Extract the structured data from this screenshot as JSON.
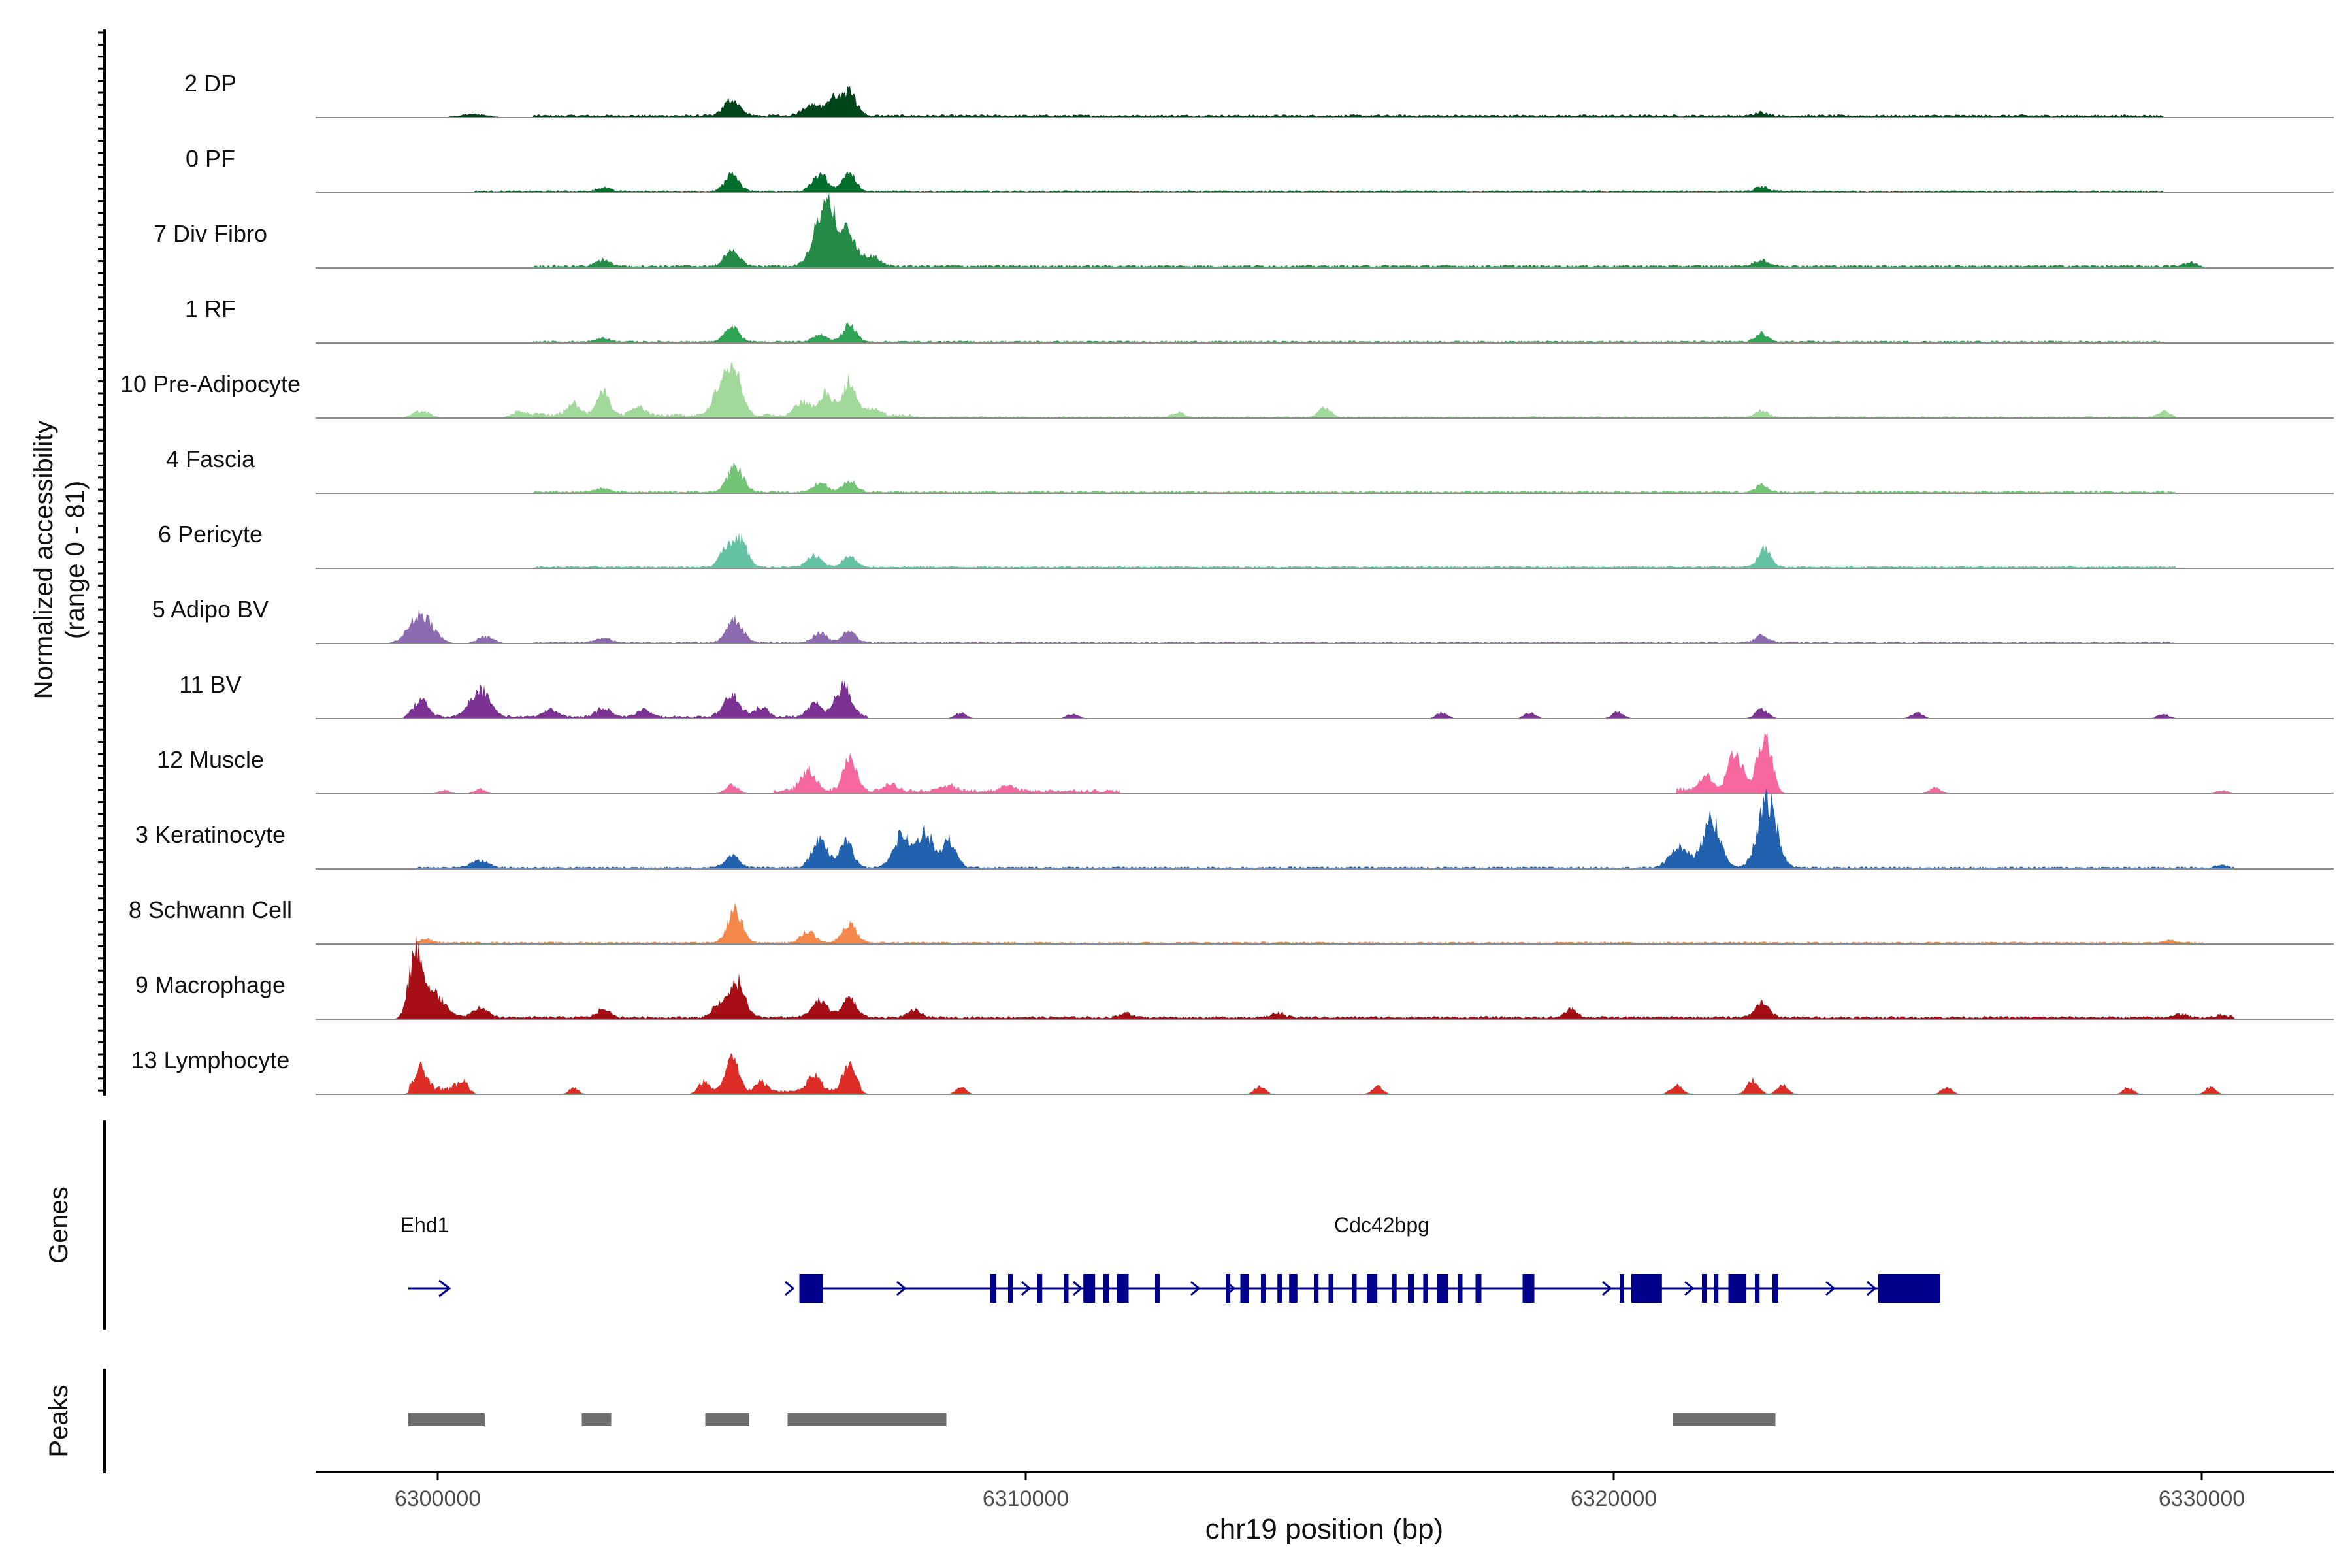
{
  "chart_data": {
    "type": "area",
    "title": "",
    "ylabel_lines": [
      "Normalized accessibility",
      "(range 0 - 81)"
    ],
    "xlabel": "chr19 position (bp)",
    "xlim": [
      6297800,
      6332200
    ],
    "ylim": [
      0,
      81
    ],
    "x_ticks": [
      6300000,
      6310000,
      6320000,
      6330000
    ],
    "x_tick_labels": [
      "6300000",
      "6310000",
      "6320000",
      "6330000"
    ],
    "track_labels": {
      "genes": "Genes",
      "peaks": "Peaks"
    },
    "baseline_color": "#8c8c8c",
    "grid": false,
    "legend": "none",
    "series": [
      {
        "name": "2 DP",
        "color": "#00441b",
        "floor": [
          [
            6301500,
            6329300,
            2
          ]
        ],
        "peaks": [
          [
            6300500,
            250,
            3
          ],
          [
            6304900,
            130,
            14
          ],
          [
            6306250,
            140,
            10
          ],
          [
            6306620,
            120,
            14
          ],
          [
            6306900,
            120,
            20
          ],
          [
            6322450,
            100,
            3
          ]
        ]
      },
      {
        "name": "0 PF",
        "color": "#006d2c",
        "floor": [
          [
            6300500,
            6329300,
            1.5
          ]
        ],
        "peaks": [
          [
            6302700,
            120,
            3
          ],
          [
            6304900,
            120,
            14
          ],
          [
            6306400,
            130,
            14
          ],
          [
            6306900,
            110,
            16
          ],
          [
            6322450,
            100,
            4
          ]
        ]
      },
      {
        "name": "7 Div Fibro",
        "color": "#238b45",
        "floor": [
          [
            6301500,
            6329800,
            2
          ]
        ],
        "peaks": [
          [
            6302700,
            120,
            5
          ],
          [
            6304900,
            120,
            14
          ],
          [
            6306500,
            180,
            52
          ],
          [
            6306900,
            140,
            24
          ],
          [
            6307300,
            120,
            8
          ],
          [
            6322450,
            120,
            5
          ],
          [
            6329800,
            110,
            4
          ]
        ]
      },
      {
        "name": "1 RF",
        "color": "#31a354",
        "floor": [
          [
            6301500,
            6329300,
            1.5
          ]
        ],
        "peaks": [
          [
            6302700,
            120,
            3
          ],
          [
            6304900,
            120,
            12
          ],
          [
            6306400,
            120,
            6
          ],
          [
            6306900,
            110,
            15
          ],
          [
            6322450,
            100,
            7
          ]
        ]
      },
      {
        "name": "10 Pre-Adipocyte",
        "color": "#a1d99b",
        "floor": [
          [
            6301500,
            6308000,
            3
          ],
          [
            6308000,
            6329500,
            1.2
          ]
        ],
        "peaks": [
          [
            6299600,
            150,
            6
          ],
          [
            6301300,
            150,
            6
          ],
          [
            6302200,
            120,
            10
          ],
          [
            6302700,
            110,
            20
          ],
          [
            6303300,
            120,
            7
          ],
          [
            6304700,
            120,
            26
          ],
          [
            6304950,
            120,
            40
          ],
          [
            6306100,
            120,
            12
          ],
          [
            6306500,
            120,
            18
          ],
          [
            6306900,
            120,
            30
          ],
          [
            6307300,
            120,
            6
          ],
          [
            6312500,
            100,
            4
          ],
          [
            6315000,
            100,
            8
          ],
          [
            6322450,
            100,
            6
          ],
          [
            6329300,
            100,
            5
          ]
        ]
      },
      {
        "name": "4 Fascia",
        "color": "#74c476",
        "floor": [
          [
            6301500,
            6329500,
            1.5
          ]
        ],
        "peaks": [
          [
            6302700,
            120,
            3
          ],
          [
            6304950,
            130,
            22
          ],
          [
            6306400,
            120,
            8
          ],
          [
            6306900,
            110,
            10
          ],
          [
            6322450,
            100,
            6
          ]
        ]
      },
      {
        "name": "6 Pericyte",
        "color": "#66c2a4",
        "floor": [
          [
            6301500,
            6329500,
            1.5
          ]
        ],
        "peaks": [
          [
            6304800,
            110,
            16
          ],
          [
            6305050,
            110,
            24
          ],
          [
            6306300,
            120,
            10
          ],
          [
            6306900,
            110,
            9
          ],
          [
            6322500,
            110,
            16
          ]
        ]
      },
      {
        "name": "5 Adipo BV",
        "color": "#8c6bb1",
        "floor": [
          [
            6301500,
            6329500,
            1.2
          ]
        ],
        "peaks": [
          [
            6299600,
            200,
            25
          ],
          [
            6300700,
            140,
            6
          ],
          [
            6302700,
            120,
            4
          ],
          [
            6304950,
            130,
            20
          ],
          [
            6306400,
            120,
            8
          ],
          [
            6306900,
            110,
            10
          ],
          [
            6322450,
            110,
            6
          ]
        ]
      },
      {
        "name": "11 BV",
        "color": "#7b3294",
        "floor": [
          [
            6299300,
            6307200,
            2
          ]
        ],
        "peaks": [
          [
            6299600,
            120,
            14
          ],
          [
            6300600,
            160,
            24
          ],
          [
            6301800,
            120,
            6
          ],
          [
            6302700,
            120,
            8
          ],
          [
            6303400,
            110,
            6
          ],
          [
            6304900,
            140,
            18
          ],
          [
            6305400,
            110,
            8
          ],
          [
            6306300,
            110,
            12
          ],
          [
            6306800,
            140,
            26
          ],
          [
            6308800,
            100,
            5
          ],
          [
            6310700,
            100,
            4
          ],
          [
            6317000,
            100,
            5
          ],
          [
            6318500,
            100,
            5
          ],
          [
            6320000,
            100,
            6
          ],
          [
            6322450,
            110,
            8
          ],
          [
            6325100,
            100,
            5
          ],
          [
            6329300,
            100,
            4
          ]
        ]
      },
      {
        "name": "12 Muscle",
        "color": "#f768a1",
        "floor": [
          [
            6305600,
            6311500,
            3
          ],
          [
            6321000,
            6322700,
            4
          ]
        ],
        "peaks": [
          [
            6300000,
            100,
            3
          ],
          [
            6300600,
            100,
            4
          ],
          [
            6304900,
            110,
            8
          ],
          [
            6306200,
            130,
            18
          ],
          [
            6306900,
            110,
            30
          ],
          [
            6307600,
            110,
            6
          ],
          [
            6308600,
            110,
            5
          ],
          [
            6309600,
            110,
            5
          ],
          [
            6321500,
            110,
            12
          ],
          [
            6322000,
            120,
            32
          ],
          [
            6322500,
            120,
            48
          ],
          [
            6325400,
            100,
            5
          ],
          [
            6330300,
            100,
            3
          ]
        ]
      },
      {
        "name": "3 Keratinocyte",
        "color": "#2161ad",
        "floor": [
          [
            6299500,
            6330500,
            1.5
          ]
        ],
        "peaks": [
          [
            6300600,
            150,
            6
          ],
          [
            6304900,
            120,
            10
          ],
          [
            6306400,
            130,
            26
          ],
          [
            6306850,
            110,
            22
          ],
          [
            6307800,
            150,
            28
          ],
          [
            6308200,
            120,
            30
          ],
          [
            6308600,
            120,
            24
          ],
          [
            6321050,
            160,
            18
          ],
          [
            6321600,
            150,
            40
          ],
          [
            6322550,
            160,
            56
          ],
          [
            6330300,
            100,
            2
          ]
        ]
      },
      {
        "name": "8 Schwann Cell",
        "color": "#f4884a",
        "floor": [
          [
            6299500,
            6330000,
            1.5
          ]
        ],
        "peaks": [
          [
            6299700,
            110,
            3
          ],
          [
            6304950,
            120,
            28
          ],
          [
            6306200,
            120,
            10
          ],
          [
            6306900,
            120,
            16
          ],
          [
            6329400,
            100,
            2
          ]
        ]
      },
      {
        "name": "9 Macrophage",
        "color": "#a50f15",
        "floor": [
          [
            6299300,
            6330500,
            2
          ]
        ],
        "peaks": [
          [
            6299500,
            110,
            52
          ],
          [
            6299800,
            180,
            22
          ],
          [
            6300600,
            130,
            8
          ],
          [
            6302700,
            110,
            7
          ],
          [
            6304700,
            120,
            12
          ],
          [
            6305000,
            120,
            30
          ],
          [
            6306400,
            140,
            14
          ],
          [
            6306900,
            120,
            16
          ],
          [
            6308000,
            110,
            6
          ],
          [
            6311600,
            100,
            4
          ],
          [
            6314200,
            100,
            4
          ],
          [
            6319200,
            100,
            7
          ],
          [
            6322450,
            120,
            12
          ],
          [
            6329600,
            100,
            3
          ],
          [
            6330300,
            100,
            2
          ]
        ]
      },
      {
        "name": "13 Lymphocyte",
        "color": "#de2d26",
        "floor": [
          [
            6299400,
            6300200,
            5
          ],
          [
            6304400,
            6307100,
            3
          ]
        ],
        "peaks": [
          [
            6299600,
            100,
            18
          ],
          [
            6300300,
            100,
            12
          ],
          [
            6302200,
            80,
            6
          ],
          [
            6304400,
            90,
            10
          ],
          [
            6304900,
            110,
            28
          ],
          [
            6305400,
            100,
            8
          ],
          [
            6306300,
            110,
            14
          ],
          [
            6306900,
            110,
            24
          ],
          [
            6308800,
            90,
            6
          ],
          [
            6313900,
            90,
            7
          ],
          [
            6315900,
            90,
            7
          ],
          [
            6321000,
            100,
            8
          ],
          [
            6322300,
            100,
            12
          ],
          [
            6322800,
            90,
            8
          ],
          [
            6325600,
            90,
            6
          ],
          [
            6328700,
            90,
            6
          ],
          [
            6330100,
            90,
            6
          ]
        ]
      }
    ],
    "genes": [
      {
        "name": "Ehd1",
        "strand": "+",
        "start": 6299500,
        "end": 6300200,
        "exons": []
      },
      {
        "name": "Cdc42bpg",
        "strand": "+",
        "start": 6306150,
        "end": 6325550,
        "exons": [
          [
            6306150,
            6306550
          ],
          [
            6309400,
            6309500
          ],
          [
            6309700,
            6309780
          ],
          [
            6310200,
            6310280
          ],
          [
            6310650,
            6310720
          ],
          [
            6310980,
            6311180
          ],
          [
            6311320,
            6311420
          ],
          [
            6311550,
            6311750
          ],
          [
            6312200,
            6312260
          ],
          [
            6313400,
            6313460
          ],
          [
            6313650,
            6313800
          ],
          [
            6314000,
            6314080
          ],
          [
            6314280,
            6314360
          ],
          [
            6314480,
            6314620
          ],
          [
            6314900,
            6314980
          ],
          [
            6315150,
            6315230
          ],
          [
            6315550,
            6315600
          ],
          [
            6315800,
            6315980
          ],
          [
            6316230,
            6316300
          ],
          [
            6316500,
            6316600
          ],
          [
            6316760,
            6316830
          ],
          [
            6317000,
            6317180
          ],
          [
            6317350,
            6317420
          ],
          [
            6317650,
            6317750
          ],
          [
            6318450,
            6318650
          ],
          [
            6320100,
            6320150
          ],
          [
            6320300,
            6320820
          ],
          [
            6321500,
            6321580
          ],
          [
            6321700,
            6321780
          ],
          [
            6321950,
            6322250
          ],
          [
            6322400,
            6322480
          ],
          [
            6322700,
            6322800
          ],
          [
            6324500,
            6325550
          ]
        ],
        "arrows": [
          6306000,
          6307900,
          6310020,
          6310900,
          6312900,
          6313500,
          6319900,
          6321300,
          6323700,
          6324400
        ]
      }
    ],
    "peaks_track": [
      [
        6299500,
        6300800
      ],
      [
        6302450,
        6302950
      ],
      [
        6304550,
        6305300
      ],
      [
        6305950,
        6308650
      ],
      [
        6321000,
        6322750
      ]
    ]
  }
}
